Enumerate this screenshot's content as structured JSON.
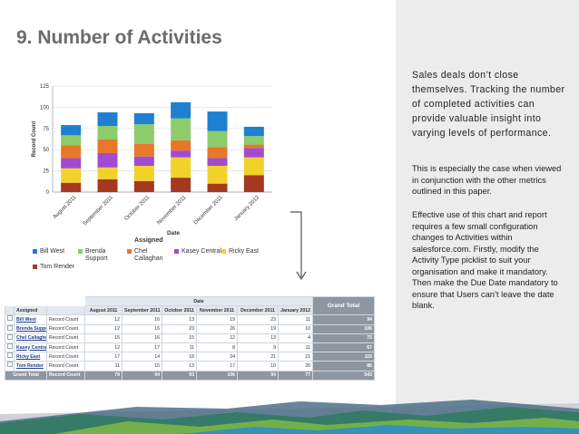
{
  "slide": {
    "title": "9. Number of Activities",
    "paragraphs": [
      "Sales deals don’t close themselves. Tracking the number of completed activities can provide valuable insight into varying levels of performance.",
      "This is especially the case when viewed in conjunction with the other metrics outlined in this paper.",
      "Effective use of this chart and report requires a few small configuration changes to Activities within salesforce.com. Firstly, modify the Activity Type picklist to suit your organisation and make it mandatory. Then make the Due Date mandatory to ensure that Users can’t leave the date blank."
    ]
  },
  "chart_data": {
    "type": "bar",
    "stacked": true,
    "categories": [
      "August 2011",
      "September 2011",
      "October 2011",
      "November 2011",
      "December 2011",
      "January 2012"
    ],
    "series": [
      {
        "name": "Tom Render",
        "color": "#a5391f",
        "values": [
          11,
          15,
          13,
          17,
          10,
          20
        ]
      },
      {
        "name": "Ricky East",
        "color": "#f1d12a",
        "values": [
          17,
          14,
          18,
          24,
          21,
          21
        ]
      },
      {
        "name": "Kasey Central",
        "color": "#a24bd0",
        "values": [
          12,
          17,
          11,
          8,
          9,
          11
        ]
      },
      {
        "name": "Chel Callaghan",
        "color": "#e8772a",
        "values": [
          15,
          16,
          15,
          12,
          13,
          4
        ]
      },
      {
        "name": "Brenda Support",
        "color": "#8ccc6a",
        "values": [
          12,
          16,
          23,
          26,
          19,
          10
        ]
      },
      {
        "name": "Bill West",
        "color": "#1f7fd0",
        "values": [
          12,
          16,
          13,
          19,
          23,
          11
        ]
      }
    ],
    "ylabel": "Record Count",
    "xlabel": "Date",
    "ylim": [
      0,
      125
    ],
    "yticks": [
      0,
      25,
      50,
      75,
      100,
      125
    ],
    "legend_title": "Assigned",
    "legend_position": "bottom",
    "grid": true
  },
  "legend": {
    "title": "Assigned",
    "items": [
      {
        "label": "Bill West",
        "color": "#1f7fd0"
      },
      {
        "label": "Brenda Support",
        "color": "#8ccc6a"
      },
      {
        "label": "Chel Callaghan",
        "color": "#e8772a"
      },
      {
        "label": "Kasey Central",
        "color": "#a24bd0"
      },
      {
        "label": "Ricky East",
        "color": "#f1d12a"
      },
      {
        "label": "Tom Render",
        "color": "#a5391f"
      }
    ]
  },
  "report": {
    "assigned_header": "Assigned",
    "date_header": "Date",
    "grand_total_label": "Grand Total",
    "months": [
      "August 2011",
      "September 2011",
      "October 2011",
      "November 2011",
      "December 2011",
      "January 2012"
    ],
    "rows": [
      {
        "name": "Bill West",
        "metric": "Record Count",
        "values": [
          "12",
          "16",
          "13",
          "19",
          "23",
          "11"
        ],
        "total": "94"
      },
      {
        "name": "Brenda Support",
        "metric": "Record Count",
        "values": [
          "12",
          "16",
          "23",
          "26",
          "19",
          "10"
        ],
        "total": "106"
      },
      {
        "name": "Chel Callaghan",
        "metric": "Record Count",
        "values": [
          "15",
          "16",
          "15",
          "12",
          "13",
          "4"
        ],
        "total": "75"
      },
      {
        "name": "Kasey Central",
        "metric": "Record Count",
        "values": [
          "12",
          "17",
          "11",
          "8",
          "9",
          "11"
        ],
        "total": "67"
      },
      {
        "name": "Ricky East",
        "metric": "Record Count",
        "values": [
          "17",
          "14",
          "18",
          "24",
          "21",
          "21"
        ],
        "total": "115"
      },
      {
        "name": "Tom Render",
        "metric": "Record Count",
        "values": [
          "11",
          "15",
          "13",
          "17",
          "10",
          "20"
        ],
        "total": "86"
      }
    ],
    "grand_total_row": {
      "metric": "Record Count",
      "values": [
        "79",
        "94",
        "93",
        "106",
        "94",
        "77"
      ],
      "total": "543"
    }
  },
  "colors": {
    "panel_bg": "#ececec",
    "title": "#6b6b6b",
    "grand_total_bg": "#8e96a0"
  }
}
